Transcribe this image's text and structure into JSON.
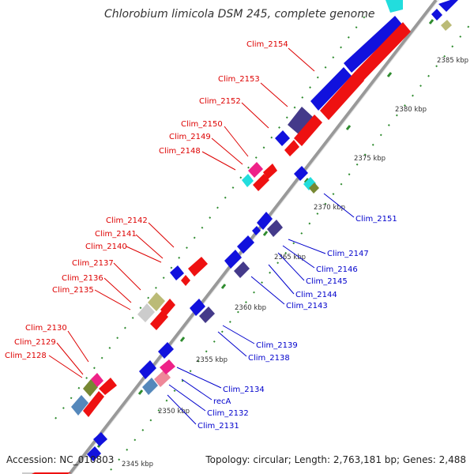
{
  "title": "Chlorobium limicola DSM 245, complete genome",
  "accession": "Accession: NC_010803",
  "topology": "Topology: circular; Length: 2,763,181 bp; Genes: 2,488",
  "colors": {
    "backbone": "#999999",
    "tick": "#2e8b2e",
    "label_forward": "#dd0000",
    "label_reverse": "#0000cc",
    "gene_red": "#ee1111",
    "gene_blue": "#1111dd",
    "gene_purple": "#443a8a",
    "gene_cyan": "#22dddd",
    "gene_magenta": "#ee2288",
    "gene_olive": "#778833",
    "gene_khaki": "#bbbb77",
    "gene_steel": "#5588bb",
    "gene_pink": "#ee8899",
    "gene_lightgray": "#cccccc"
  },
  "ruler": [
    "2345 kbp",
    "2350 kbp",
    "2355 kbp",
    "2360 kbp",
    "2365 kbp",
    "2370 kbp",
    "2375 kbp",
    "2380 kbp",
    "2385 kbp"
  ],
  "labels_forward": [
    "Clim_2154",
    "Clim_2153",
    "Clim_2152",
    "Clim_2150",
    "Clim_2149",
    "Clim_2148",
    "Clim_2142",
    "Clim_2141",
    "Clim_2140",
    "Clim_2137",
    "Clim_2136",
    "Clim_2135",
    "Clim_2130",
    "Clim_2129",
    "Clim_2128"
  ],
  "labels_reverse": [
    "Clim_2151",
    "Clim_2147",
    "Clim_2146",
    "Clim_2145",
    "Clim_2144",
    "Clim_2143",
    "Clim_2139",
    "Clim_2138",
    "Clim_2134",
    "recA",
    "Clim_2132",
    "Clim_2131"
  ]
}
